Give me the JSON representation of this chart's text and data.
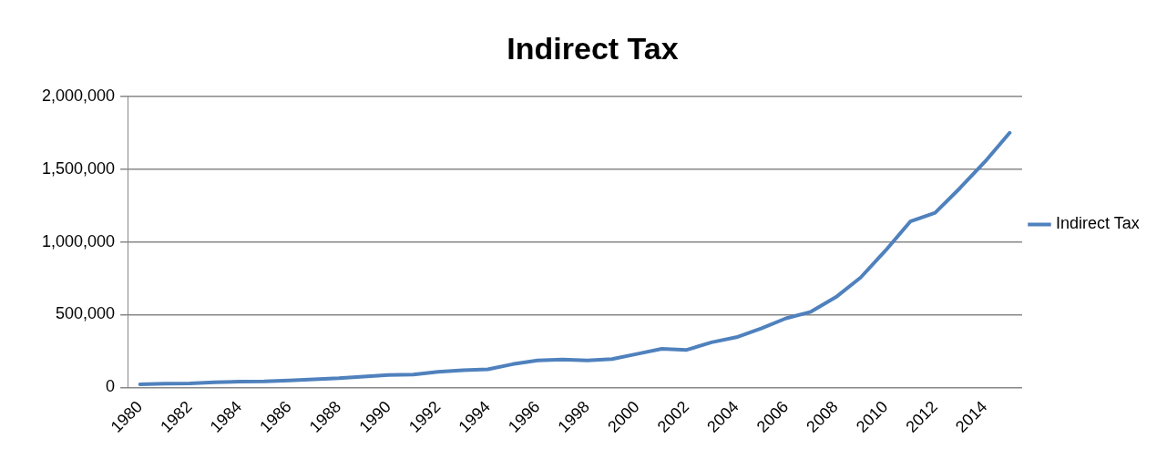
{
  "chart_data": {
    "type": "line",
    "title": "Indirect Tax",
    "categories": [
      "1980",
      null,
      "1982",
      null,
      "1984",
      null,
      "1986",
      null,
      "1988",
      null,
      "1990",
      null,
      "1992",
      null,
      "1994",
      null,
      "1996",
      null,
      "1998",
      null,
      "2000",
      null,
      "2002",
      null,
      "2004",
      null,
      "2006",
      null,
      "2008",
      null,
      "2010",
      null,
      "2012",
      null,
      "2014",
      null
    ],
    "series": [
      {
        "name": "Indirect Tax",
        "color": "#4f81bd",
        "values": [
          22000,
          26000,
          28000,
          35000,
          40000,
          42000,
          48000,
          55000,
          63000,
          75000,
          85000,
          88000,
          108000,
          118000,
          125000,
          160000,
          185000,
          192000,
          185000,
          195000,
          230000,
          265000,
          258000,
          310000,
          345000,
          405000,
          475000,
          520000,
          620000,
          755000,
          940000,
          1140000,
          1200000,
          1370000,
          1550000,
          1750000
        ]
      }
    ],
    "ylim": [
      0,
      2000000
    ],
    "yticks": [
      0,
      {
        "value": 500000,
        "label": "500,000"
      },
      {
        "value": 1000000,
        "label": "1,000,000"
      },
      {
        "value": 1500000,
        "label": "1,500,000"
      },
      {
        "value": 2000000,
        "label": "2,000,000"
      }
    ],
    "grid": "y",
    "legend": "right",
    "marker": "none",
    "line_style": "solid"
  }
}
